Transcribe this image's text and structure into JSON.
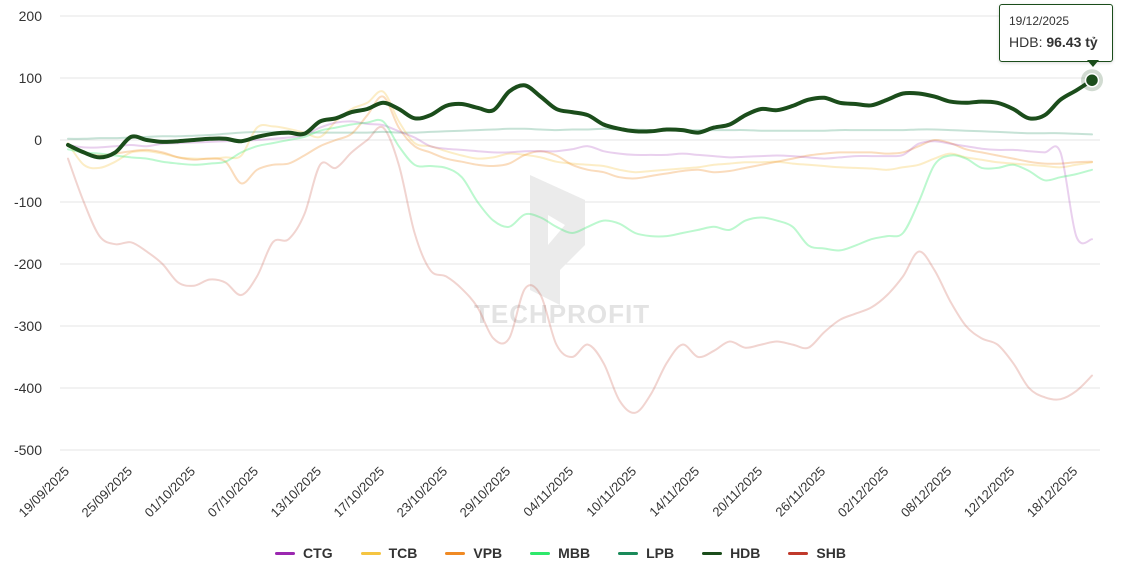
{
  "chart_data": {
    "type": "line",
    "watermark": "TECHPROFIT",
    "ylim": [
      -500,
      200
    ],
    "yticks": [
      200,
      100,
      0,
      -100,
      -200,
      -300,
      -400,
      -500
    ],
    "grid": true,
    "legend_position": "bottom-center",
    "x": [
      "19/09/2025",
      "22/09/2025",
      "23/09/2025",
      "24/09/2025",
      "25/09/2025",
      "26/09/2025",
      "29/09/2025",
      "30/09/2025",
      "01/10/2025",
      "02/10/2025",
      "03/10/2025",
      "06/10/2025",
      "07/10/2025",
      "08/10/2025",
      "09/10/2025",
      "10/10/2025",
      "13/10/2025",
      "14/10/2025",
      "15/10/2025",
      "16/10/2025",
      "17/10/2025",
      "20/10/2025",
      "21/10/2025",
      "22/10/2025",
      "23/10/2025",
      "24/10/2025",
      "27/10/2025",
      "28/10/2025",
      "29/10/2025",
      "30/10/2025",
      "31/10/2025",
      "03/11/2025",
      "04/11/2025",
      "05/11/2025",
      "06/11/2025",
      "07/11/2025",
      "10/11/2025",
      "11/11/2025",
      "12/11/2025",
      "13/11/2025",
      "14/11/2025",
      "17/11/2025",
      "18/11/2025",
      "19/11/2025",
      "20/11/2025",
      "21/11/2025",
      "24/11/2025",
      "25/11/2025",
      "26/11/2025",
      "27/11/2025",
      "28/11/2025",
      "01/12/2025",
      "02/12/2025",
      "03/12/2025",
      "04/12/2025",
      "05/12/2025",
      "08/12/2025",
      "09/12/2025",
      "10/12/2025",
      "11/12/2025",
      "12/12/2025",
      "15/12/2025",
      "16/12/2025",
      "17/12/2025",
      "18/12/2025",
      "19/12/2025"
    ],
    "xtick_labels": [
      "19/09/2025",
      "25/09/2025",
      "01/10/2025",
      "07/10/2025",
      "13/10/2025",
      "17/10/2025",
      "23/10/2025",
      "29/10/2025",
      "04/11/2025",
      "10/11/2025",
      "14/11/2025",
      "20/11/2025",
      "26/11/2025",
      "02/12/2025",
      "08/12/2025",
      "12/12/2025",
      "18/12/2025"
    ],
    "series": [
      {
        "name": "CTG",
        "color": "#9b27b0",
        "opacity": 0.22,
        "width": 2,
        "values": [
          -8,
          -12,
          -12,
          -10,
          -8,
          -10,
          -6,
          -5,
          -4,
          -3,
          -2,
          -1,
          0,
          2,
          4,
          8,
          20,
          28,
          30,
          26,
          24,
          14,
          4,
          -10,
          -14,
          -16,
          -18,
          -20,
          -20,
          -18,
          -18,
          -18,
          -15,
          -10,
          -18,
          -22,
          -24,
          -24,
          -24,
          -22,
          -24,
          -26,
          -28,
          -27,
          -26,
          -25,
          -26,
          -28,
          -30,
          -28,
          -26,
          -26,
          -26,
          -24,
          -6,
          -2,
          -6,
          -10,
          -14,
          -16,
          -16,
          -18,
          -20,
          -20,
          -155,
          -160
        ]
      },
      {
        "name": "TCB",
        "color": "#f5c542",
        "opacity": 0.3,
        "width": 2,
        "values": [
          -5,
          -40,
          -45,
          -35,
          -20,
          -18,
          -22,
          -28,
          -30,
          -30,
          -28,
          -25,
          20,
          22,
          18,
          12,
          5,
          30,
          50,
          60,
          78,
          30,
          -5,
          -10,
          -18,
          -25,
          -30,
          -28,
          -22,
          -24,
          -28,
          -35,
          -38,
          -40,
          -42,
          -48,
          -52,
          -50,
          -48,
          -46,
          -44,
          -40,
          -38,
          -36,
          -36,
          -35,
          -38,
          -40,
          -42,
          -44,
          -45,
          -46,
          -48,
          -44,
          -40,
          -30,
          -22,
          -28,
          -32,
          -36,
          -38,
          -40,
          -42,
          -44,
          -40,
          -36
        ]
      },
      {
        "name": "VPB",
        "color": "#f08a24",
        "opacity": 0.3,
        "width": 2,
        "values": [
          -10,
          -20,
          -25,
          -22,
          -18,
          -16,
          -20,
          -28,
          -32,
          -30,
          -35,
          -70,
          -48,
          -40,
          -38,
          -25,
          -10,
          0,
          10,
          40,
          70,
          20,
          -10,
          -20,
          -30,
          -35,
          -40,
          -42,
          -38,
          -24,
          -18,
          -25,
          -40,
          -48,
          -52,
          -60,
          -62,
          -58,
          -54,
          -50,
          -48,
          -52,
          -50,
          -45,
          -40,
          -35,
          -30,
          -25,
          -22,
          -20,
          -20,
          -20,
          -22,
          -20,
          -10,
          0,
          -5,
          -15,
          -20,
          -25,
          -30,
          -35,
          -38,
          -38,
          -36,
          -35
        ]
      },
      {
        "name": "MBB",
        "color": "#2ee86b",
        "opacity": 0.32,
        "width": 2,
        "values": [
          -15,
          -20,
          -22,
          -25,
          -28,
          -30,
          -35,
          -38,
          -40,
          -38,
          -35,
          -20,
          -10,
          -5,
          0,
          5,
          15,
          20,
          25,
          28,
          30,
          -10,
          -40,
          -42,
          -45,
          -60,
          -100,
          -130,
          -140,
          -120,
          -125,
          -140,
          -150,
          -140,
          -130,
          -135,
          -150,
          -155,
          -155,
          -150,
          -145,
          -140,
          -145,
          -130,
          -125,
          -130,
          -140,
          -170,
          -175,
          -178,
          -170,
          -160,
          -155,
          -150,
          -100,
          -40,
          -25,
          -30,
          -45,
          -45,
          -40,
          -50,
          -65,
          -60,
          -55,
          -48
        ]
      },
      {
        "name": "LPB",
        "color": "#1a8a5a",
        "opacity": 0.25,
        "width": 2,
        "values": [
          2,
          2,
          3,
          3,
          4,
          5,
          6,
          6,
          7,
          8,
          10,
          12,
          13,
          13,
          12,
          12,
          12,
          12,
          12,
          12,
          13,
          12,
          12,
          13,
          14,
          15,
          16,
          17,
          18,
          18,
          17,
          16,
          17,
          17,
          18,
          17,
          17,
          16,
          16,
          16,
          16,
          16,
          16,
          16,
          15,
          15,
          15,
          15,
          15,
          16,
          16,
          16,
          16,
          16,
          17,
          17,
          16,
          15,
          14,
          13,
          12,
          11,
          11,
          11,
          10,
          9
        ]
      },
      {
        "name": "HDB",
        "color": "#1b4d1b",
        "opacity": 1,
        "width": 4,
        "values": [
          -8,
          -20,
          -28,
          -20,
          5,
          0,
          -3,
          -2,
          0,
          2,
          2,
          -2,
          5,
          10,
          12,
          10,
          30,
          35,
          45,
          50,
          60,
          50,
          35,
          40,
          55,
          58,
          52,
          48,
          78,
          88,
          70,
          50,
          45,
          40,
          25,
          18,
          14,
          14,
          17,
          16,
          12,
          20,
          25,
          40,
          50,
          48,
          55,
          65,
          68,
          60,
          58,
          56,
          65,
          75,
          75,
          70,
          62,
          60,
          62,
          60,
          50,
          35,
          40,
          65,
          80,
          96.43
        ]
      },
      {
        "name": "SHB",
        "color": "#c0392b",
        "opacity": 0.22,
        "width": 2,
        "values": [
          -30,
          -100,
          -155,
          -168,
          -165,
          -180,
          -200,
          -230,
          -235,
          -225,
          -230,
          -250,
          -220,
          -165,
          -160,
          -120,
          -40,
          -45,
          -20,
          0,
          20,
          -40,
          -150,
          -210,
          -220,
          -240,
          -270,
          -320,
          -320,
          -240,
          -250,
          -330,
          -350,
          -330,
          -360,
          -420,
          -440,
          -410,
          -360,
          -330,
          -350,
          -340,
          -325,
          -335,
          -330,
          -325,
          -330,
          -335,
          -310,
          -290,
          -280,
          -270,
          -250,
          -220,
          -180,
          -210,
          -260,
          -300,
          -320,
          -330,
          -360,
          -400,
          -415,
          -418,
          -405,
          -380
        ]
      }
    ],
    "tooltip": {
      "date": "19/12/2025",
      "series": "HDB",
      "value": "96.43 tỷ"
    }
  },
  "legend": [
    "CTG",
    "TCB",
    "VPB",
    "MBB",
    "LPB",
    "HDB",
    "SHB"
  ],
  "legend_colors": [
    "#9b27b0",
    "#f5c542",
    "#f08a24",
    "#2ee86b",
    "#1a8a5a",
    "#1b4d1b",
    "#c0392b"
  ]
}
